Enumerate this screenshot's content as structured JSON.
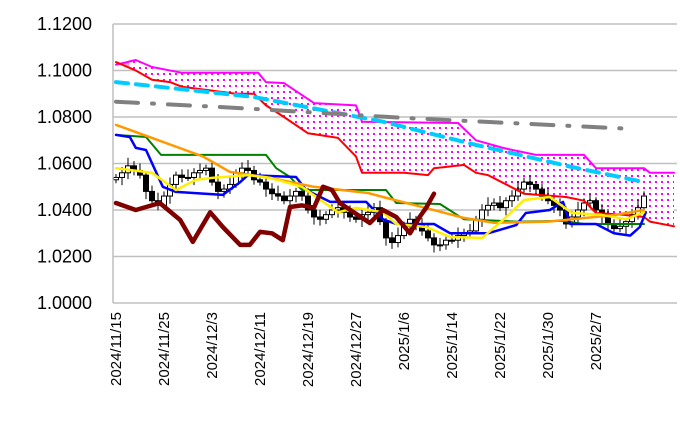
{
  "chart_data": {
    "type": "line",
    "title": "",
    "xlabel": "",
    "ylabel": "",
    "ylim": [
      1.0,
      1.12
    ],
    "grid": true,
    "x_unit": "trading-day index (0 = 2024/11/15)",
    "yticks": [
      "1.0000",
      "1.0200",
      "1.0400",
      "1.0600",
      "1.0800",
      "1.1000",
      "1.1200"
    ],
    "ytick_values": [
      1.0,
      1.02,
      1.04,
      1.06,
      1.08,
      1.1,
      1.12
    ],
    "xticks": [
      {
        "i": 0,
        "label": "2024/11/15"
      },
      {
        "i": 8,
        "label": "2024/11/25"
      },
      {
        "i": 16,
        "label": "2024/12/3"
      },
      {
        "i": 24,
        "label": "2024/12/11"
      },
      {
        "i": 32,
        "label": "2024/12/19"
      },
      {
        "i": 40,
        "label": "2024/12/27"
      },
      {
        "i": 48,
        "label": "2025/1/6"
      },
      {
        "i": 56,
        "label": "2025/1/14"
      },
      {
        "i": 64,
        "label": "2025/1/22"
      },
      {
        "i": 72,
        "label": "2025/1/30"
      },
      {
        "i": 80,
        "label": "2025/2/7"
      }
    ],
    "candles_close": [
      1.054,
      1.056,
      1.059,
      1.057,
      1.055,
      1.048,
      1.044,
      1.042,
      1.046,
      1.051,
      1.055,
      1.054,
      1.054,
      1.056,
      1.057,
      1.058,
      1.052,
      1.048,
      1.049,
      1.051,
      1.056,
      1.058,
      1.057,
      1.053,
      1.052,
      1.049,
      1.047,
      1.046,
      1.044,
      1.046,
      1.048,
      1.046,
      1.04,
      1.037,
      1.036,
      1.038,
      1.04,
      1.041,
      1.039,
      1.037,
      1.036,
      1.038,
      1.039,
      1.041,
      1.035,
      1.028,
      1.026,
      1.029,
      1.033,
      1.036,
      1.034,
      1.031,
      1.028,
      1.025,
      1.025,
      1.027,
      1.027,
      1.029,
      1.03,
      1.031,
      1.036,
      1.04,
      1.042,
      1.043,
      1.041,
      1.044,
      1.046,
      1.049,
      1.052,
      1.051,
      1.049,
      1.046,
      1.044,
      1.042,
      1.04,
      1.034,
      1.037,
      1.04,
      1.043,
      1.044,
      1.04,
      1.037,
      1.034,
      1.032,
      1.033,
      1.035,
      1.038,
      1.041,
      1.046
    ],
    "colors": {
      "span_b": "#ff00ff",
      "span_a": "#ff0000",
      "cloud_dots": "#ff00ff",
      "cloud_inverted": "#ff99dd",
      "ma_long": "#00ccff",
      "ma_longer": "#808080",
      "kijun": "#008000",
      "tenkan": "#0000ff",
      "ma_mid": "#ff9900",
      "ma_short": "#ffee00",
      "chikou": "#800000"
    },
    "series": [
      {
        "name": "senkou_span_b",
        "points": [
          [
            0,
            1.1025
          ],
          [
            3.3,
            1.1045
          ],
          [
            6,
            1.1015
          ],
          [
            11,
            1.099
          ],
          [
            23.7,
            1.099
          ],
          [
            25,
            1.095
          ],
          [
            28,
            1.0946
          ],
          [
            33,
            1.086
          ],
          [
            40,
            1.085
          ],
          [
            41,
            1.078
          ],
          [
            57,
            1.0774
          ],
          [
            60,
            1.07
          ],
          [
            64.5,
            1.0667
          ],
          [
            70,
            1.0637
          ],
          [
            78,
            1.0637
          ],
          [
            80,
            1.058
          ],
          [
            88,
            1.058
          ],
          [
            89,
            1.056
          ],
          [
            93,
            1.056
          ]
        ]
      },
      {
        "name": "senkou_span_a",
        "points": [
          [
            0,
            1.1036
          ],
          [
            3.3,
            1.1
          ],
          [
            6,
            1.096
          ],
          [
            9,
            1.095
          ],
          [
            11,
            1.093
          ],
          [
            20,
            1.09
          ],
          [
            23,
            1.09
          ],
          [
            25,
            1.085
          ],
          [
            28,
            1.08
          ],
          [
            32,
            1.073
          ],
          [
            37,
            1.071
          ],
          [
            40,
            1.063
          ],
          [
            41,
            1.056
          ],
          [
            48,
            1.056
          ],
          [
            52,
            1.055
          ],
          [
            53,
            1.058
          ],
          [
            58,
            1.0594
          ],
          [
            60,
            1.056
          ],
          [
            62,
            1.055
          ],
          [
            64.5,
            1.0517
          ],
          [
            68,
            1.047
          ],
          [
            75,
            1.0456
          ],
          [
            78,
            1.044
          ],
          [
            80,
            1.0387
          ],
          [
            84.5,
            1.038
          ],
          [
            88,
            1.037
          ],
          [
            89,
            1.035
          ],
          [
            93,
            1.033
          ]
        ]
      },
      {
        "name": "ma_cyan_dashed",
        "points": [
          [
            0,
            1.095
          ],
          [
            23,
            1.0886
          ],
          [
            44.5,
            1.078
          ],
          [
            60,
            1.068
          ],
          [
            76,
            1.0585
          ],
          [
            88,
            1.052
          ]
        ]
      },
      {
        "name": "ma_gray_dashdot",
        "points": [
          [
            0,
            1.0866
          ],
          [
            19.5,
            1.084
          ],
          [
            48,
            1.0796
          ],
          [
            86,
            1.0749
          ]
        ]
      },
      {
        "name": "kijun",
        "points": [
          [
            0,
            1.0723
          ],
          [
            5,
            1.0714
          ],
          [
            7.5,
            1.0637
          ],
          [
            25,
            1.0637
          ],
          [
            26.7,
            1.058
          ],
          [
            29,
            1.0542
          ],
          [
            31,
            1.0486
          ],
          [
            45,
            1.0486
          ],
          [
            46.7,
            1.043
          ],
          [
            54,
            1.0426
          ],
          [
            58,
            1.036
          ],
          [
            66.7,
            1.035
          ],
          [
            74.5,
            1.0353
          ],
          [
            78,
            1.034
          ],
          [
            88,
            1.034
          ]
        ]
      },
      {
        "name": "tenkan",
        "points": [
          [
            0,
            1.0723
          ],
          [
            2.3,
            1.0714
          ],
          [
            3.3,
            1.0667
          ],
          [
            5,
            1.0658
          ],
          [
            7.8,
            1.05
          ],
          [
            10,
            1.0478
          ],
          [
            17.8,
            1.0465
          ],
          [
            20.7,
            1.052
          ],
          [
            22,
            1.055
          ],
          [
            30,
            1.0542
          ],
          [
            31.7,
            1.0486
          ],
          [
            35.7,
            1.0435
          ],
          [
            41.7,
            1.0435
          ],
          [
            44.5,
            1.036
          ],
          [
            46.7,
            1.034
          ],
          [
            53,
            1.034
          ],
          [
            55.7,
            1.03
          ],
          [
            62,
            1.03
          ],
          [
            66.7,
            1.0335
          ],
          [
            68.3,
            1.0387
          ],
          [
            72.3,
            1.04
          ],
          [
            74.5,
            1.0435
          ],
          [
            75.7,
            1.034
          ],
          [
            80,
            1.034
          ],
          [
            83,
            1.03
          ],
          [
            85.7,
            1.029
          ],
          [
            87.3,
            1.0327
          ],
          [
            88.3,
            1.039
          ]
        ]
      },
      {
        "name": "ma_orange",
        "points": [
          [
            0,
            1.0766
          ],
          [
            6,
            1.071
          ],
          [
            14.5,
            1.063
          ],
          [
            19,
            1.0564
          ],
          [
            25.7,
            1.0538
          ],
          [
            33,
            1.05
          ],
          [
            42,
            1.0473
          ],
          [
            44.5,
            1.0456
          ],
          [
            50,
            1.042
          ],
          [
            58,
            1.0366
          ],
          [
            63,
            1.0345
          ],
          [
            72,
            1.035
          ],
          [
            83,
            1.0378
          ],
          [
            88,
            1.04
          ]
        ]
      },
      {
        "name": "ma_yellow",
        "points": [
          [
            0,
            1.058
          ],
          [
            6,
            1.056
          ],
          [
            10,
            1.0486
          ],
          [
            13.3,
            1.053
          ],
          [
            16,
            1.0538
          ],
          [
            22,
            1.055
          ],
          [
            25.7,
            1.0538
          ],
          [
            31,
            1.05
          ],
          [
            37,
            1.039
          ],
          [
            40,
            1.041
          ],
          [
            44.5,
            1.039
          ],
          [
            46.7,
            1.034
          ],
          [
            51.7,
            1.0327
          ],
          [
            55.7,
            1.0284
          ],
          [
            61,
            1.028
          ],
          [
            64.5,
            1.0357
          ],
          [
            68,
            1.0443
          ],
          [
            72.3,
            1.0456
          ],
          [
            76,
            1.0387
          ],
          [
            80.7,
            1.038
          ],
          [
            85,
            1.036
          ],
          [
            88,
            1.039
          ]
        ]
      },
      {
        "name": "chikou",
        "points": [
          [
            0,
            1.043
          ],
          [
            3.3,
            1.04
          ],
          [
            7.3,
            1.043
          ],
          [
            10.7,
            1.0357
          ],
          [
            12.8,
            1.0263
          ],
          [
            15.7,
            1.039
          ],
          [
            17.8,
            1.0327
          ],
          [
            20.7,
            1.025
          ],
          [
            22.3,
            1.025
          ],
          [
            24,
            1.0306
          ],
          [
            26,
            1.03
          ],
          [
            27.8,
            1.027
          ],
          [
            29,
            1.0413
          ],
          [
            31,
            1.042
          ],
          [
            33,
            1.041
          ],
          [
            34.5,
            1.05
          ],
          [
            36,
            1.0486
          ],
          [
            37.3,
            1.043
          ],
          [
            42.3,
            1.0344
          ],
          [
            44.5,
            1.04
          ],
          [
            46.7,
            1.037
          ],
          [
            49,
            1.03
          ],
          [
            50.6,
            1.037
          ],
          [
            51.7,
            1.041
          ],
          [
            53,
            1.047
          ]
        ]
      }
    ]
  }
}
